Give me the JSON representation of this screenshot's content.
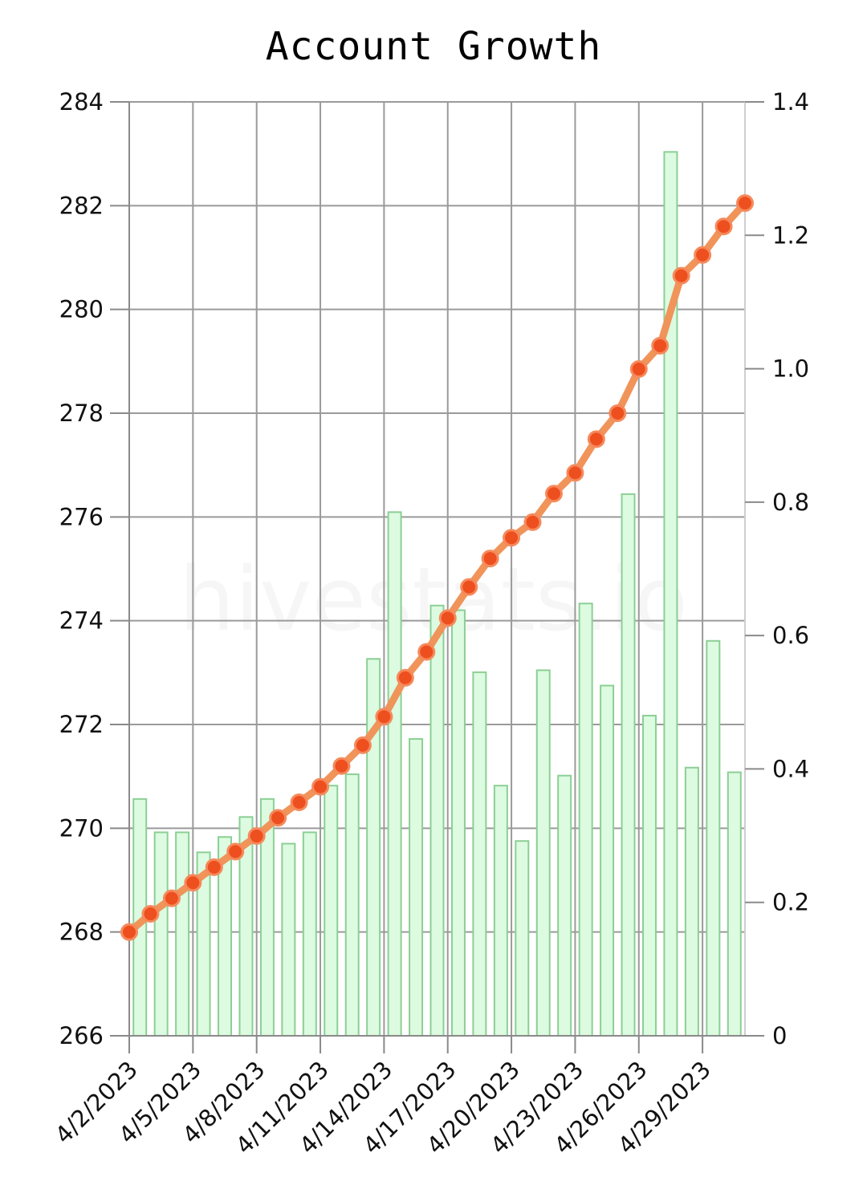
{
  "chart_data": {
    "type": "bar+line",
    "title": "Account Growth",
    "watermark": "hivestats.io",
    "x_dates": [
      "4/2/2023",
      "4/3/2023",
      "4/4/2023",
      "4/5/2023",
      "4/6/2023",
      "4/7/2023",
      "4/8/2023",
      "4/9/2023",
      "4/10/2023",
      "4/11/2023",
      "4/12/2023",
      "4/13/2023",
      "4/14/2023",
      "4/15/2023",
      "4/16/2023",
      "4/17/2023",
      "4/18/2023",
      "4/19/2023",
      "4/20/2023",
      "4/21/2023",
      "4/22/2023",
      "4/23/2023",
      "4/24/2023",
      "4/25/2023",
      "4/26/2023",
      "4/27/2023",
      "4/28/2023",
      "4/29/2023",
      "4/30/2023",
      "5/1/2023"
    ],
    "x_tick_labels": [
      "4/2/2023",
      "4/5/2023",
      "4/8/2023",
      "4/11/2023",
      "4/14/2023",
      "4/17/2023",
      "4/20/2023",
      "4/23/2023",
      "4/26/2023",
      "4/29/2023"
    ],
    "left_axis": {
      "ylim": [
        266,
        284
      ],
      "ticks": [
        "266",
        "268",
        "270",
        "272",
        "274",
        "276",
        "278",
        "280",
        "282",
        "284"
      ]
    },
    "right_axis": {
      "ylim": [
        0,
        1.4
      ],
      "ticks": [
        "0",
        "0.2",
        "0.4",
        "0.6",
        "0.8",
        "1.0",
        "1.2",
        "1.4"
      ]
    },
    "series": [
      {
        "kind": "line",
        "axis": "left",
        "color": "#f0945a",
        "marker_color": "#ee4f1f",
        "values": [
          268.0,
          268.35,
          268.65,
          268.95,
          269.25,
          269.55,
          269.85,
          270.2,
          270.5,
          270.8,
          271.2,
          271.6,
          272.15,
          272.9,
          273.4,
          274.05,
          274.65,
          275.2,
          275.6,
          275.9,
          276.45,
          276.85,
          277.5,
          278.0,
          278.85,
          279.3,
          280.65,
          281.05,
          281.6,
          282.05
        ]
      },
      {
        "kind": "bar",
        "axis": "right",
        "fill": "#dcfbe0",
        "stroke": "#8ccf95",
        "values": [
          0.355,
          0.305,
          0.305,
          0.275,
          0.298,
          0.328,
          0.355,
          0.288,
          0.305,
          0.375,
          0.392,
          0.565,
          0.785,
          0.445,
          0.645,
          0.638,
          0.545,
          0.375,
          0.292,
          0.548,
          0.39,
          0.648,
          0.525,
          0.812,
          0.48,
          1.325,
          0.402,
          0.592,
          0.395,
          0.0
        ]
      }
    ],
    "grid": true
  }
}
